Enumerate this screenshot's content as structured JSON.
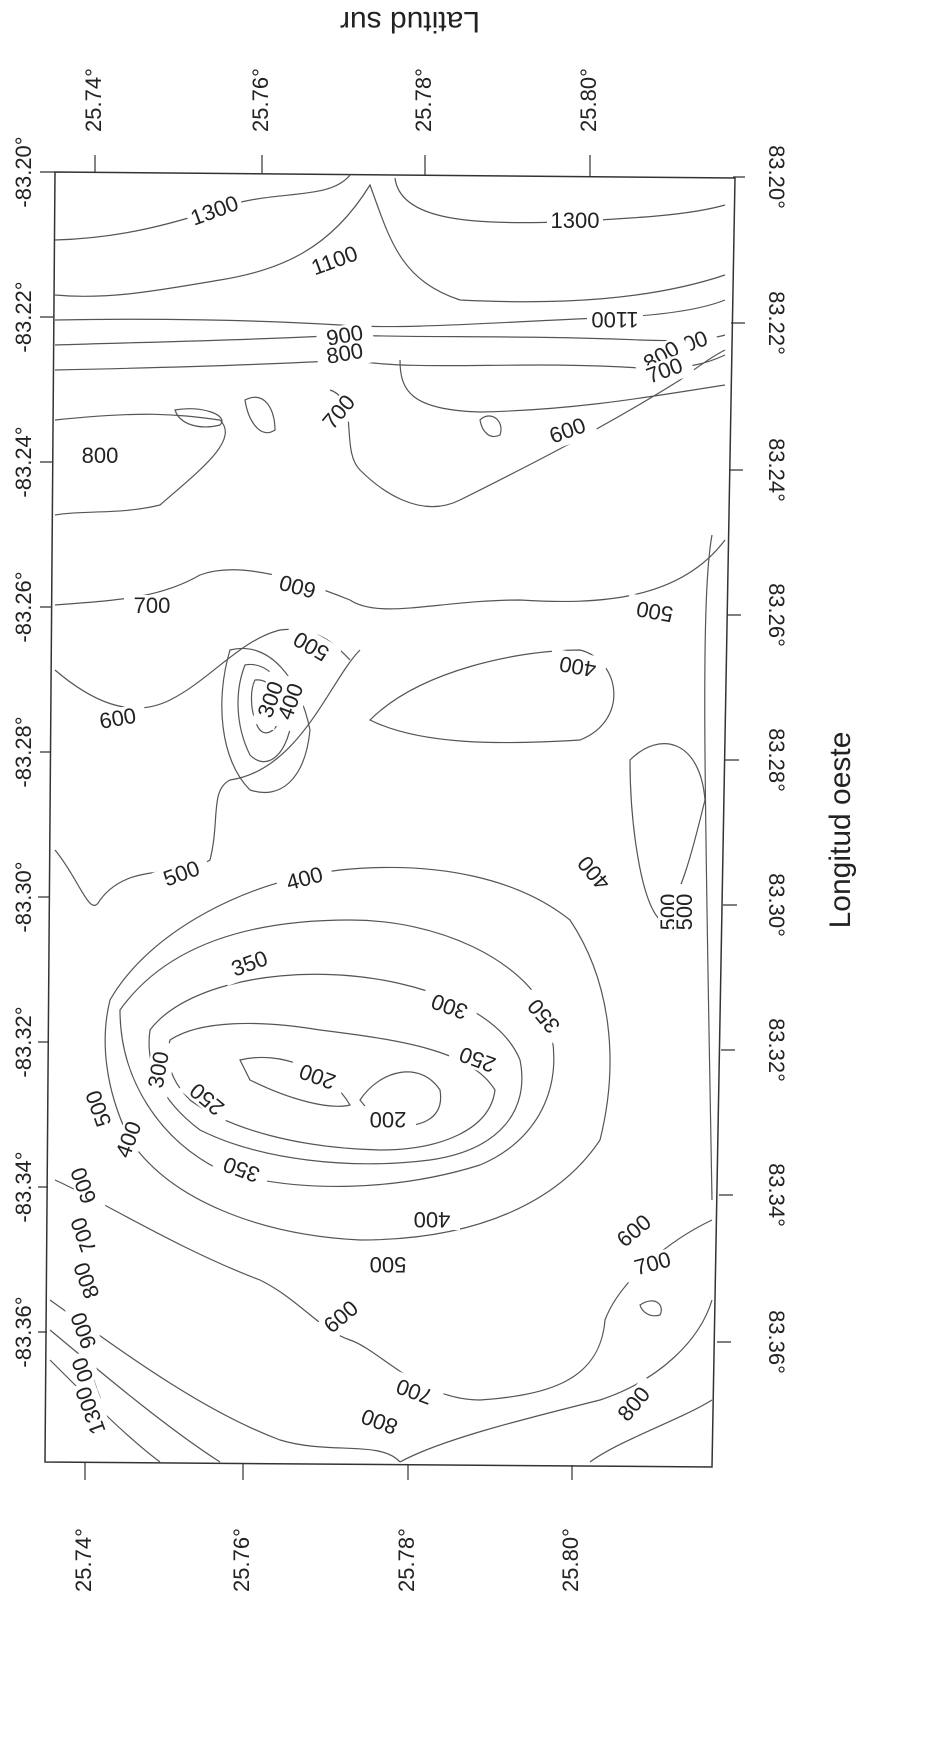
{
  "axes": {
    "top_label": "Latitud sur",
    "right_label": "Longitud oeste",
    "top_ticks": [
      "25.74°",
      "25.76°",
      "25.78°",
      "25.80°"
    ],
    "bottom_ticks": [
      "25.74°",
      "25.76°",
      "25.78°",
      "25.80°"
    ],
    "left_ticks": [
      "-83.20°",
      "-83.22°",
      "-83.24°",
      "-83.26°",
      "-83.28°",
      "-83.30°",
      "-83.32°",
      "-83.34°",
      "-83.36°"
    ],
    "right_ticks": [
      "83.20°",
      "83.22°",
      "83.24°",
      "83.26°",
      "83.28°",
      "83.30°",
      "83.32°",
      "83.34°",
      "83.36°"
    ]
  },
  "contour_labels": [
    1300,
    1300,
    1100,
    1100,
    900,
    800,
    900,
    800,
    700,
    700,
    600,
    800,
    600,
    700,
    500,
    500,
    400,
    600,
    300,
    400,
    500,
    400,
    350,
    500,
    500,
    400,
    300,
    350,
    300,
    250,
    200,
    250,
    200,
    500,
    400,
    600,
    350,
    400,
    700,
    600,
    500,
    700,
    800,
    900,
    600,
    1100,
    700,
    1300,
    800,
    800
  ]
}
